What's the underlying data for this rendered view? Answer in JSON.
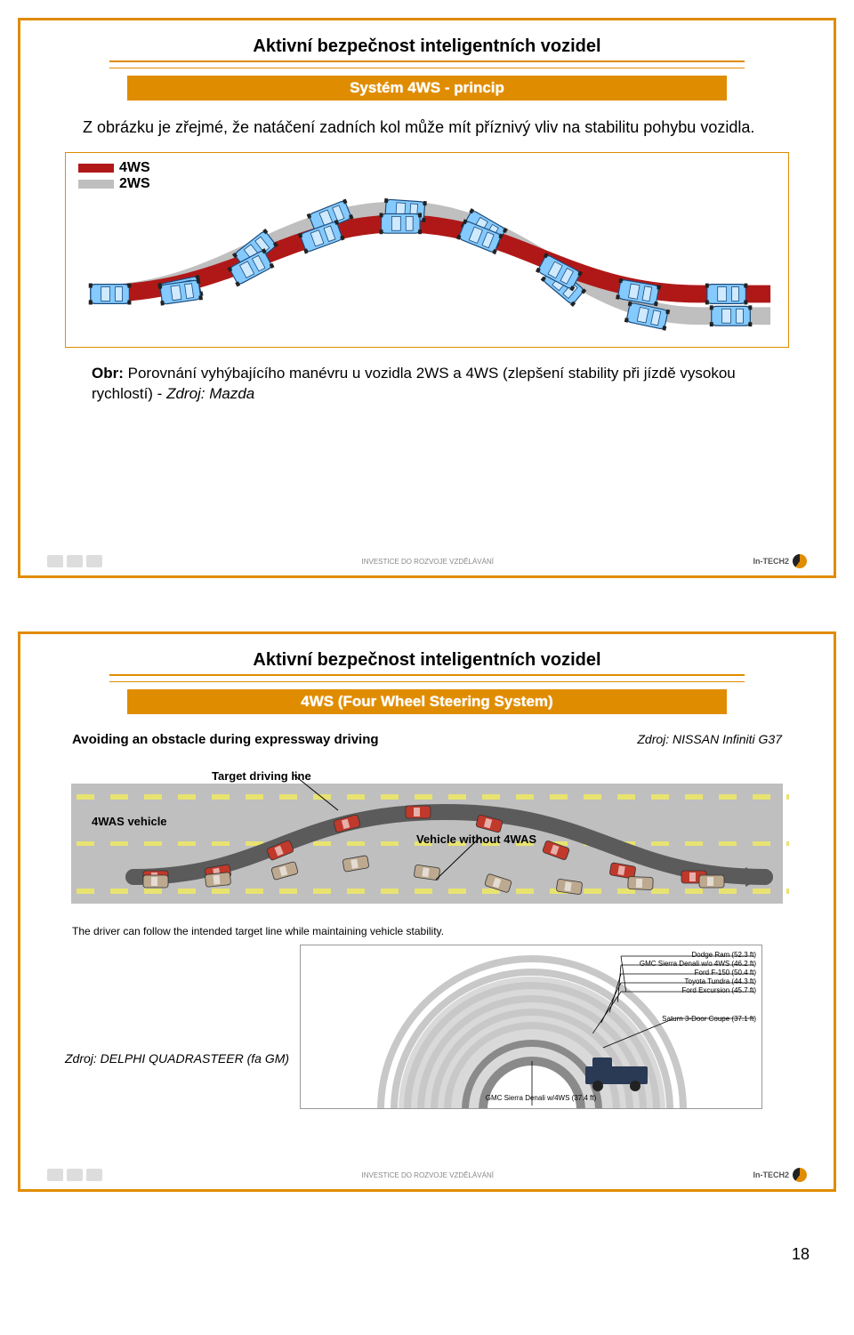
{
  "page_number": "18",
  "common": {
    "slide_header": "Aktivní bezpečnost inteligentních vozidel",
    "footer_center": "INVESTICE DO ROZVOJE VZDĚLÁVÁNÍ",
    "footer_right_brand": "In-TECH2",
    "accent_color": "#e08c00",
    "frame_color": "#e08c00"
  },
  "slide1": {
    "section_title": "Systém 4WS - princip",
    "intro_text": "Z obrázku je zřejmé, že natáčení zadních kol může mít příznivý vliv na stabilitu pohybu vozidla.",
    "legend": {
      "a_label": "4WS",
      "a_color": "#b01818",
      "b_label": "2WS",
      "b_color": "#bfbfbf"
    },
    "caption_prefix": "Obr:",
    "caption_main": " Porovnání vyhýbajícího manévru u vozidla 2WS a 4WS (zlepšení stability při jízdě vysokou rychlostí) - ",
    "caption_source": "Zdroj: Mazda",
    "path_4ws": {
      "color": "#b01818",
      "width": 20
    },
    "path_2ws": {
      "color": "#bfbfbf",
      "width": 20
    },
    "car_body_color": "#84caff",
    "car_outline_color": "#1a4a7a"
  },
  "slide2": {
    "section_title": "4WS (Four Wheel Steering System)",
    "figA": {
      "heading": "Avoiding an obstacle during expressway driving",
      "source": "Zdroj: NISSAN Infiniti G37",
      "label_target": "Target driving line",
      "label_4was": "4WAS vehicle",
      "label_without": "Vehicle without 4WAS",
      "footnote": "The driver can follow the intended target line while maintaining vehicle stability.",
      "road_color": "#8f8f8f",
      "lane_color": "#e8e370",
      "arrow_color": "#5b5b5b",
      "car_4was_color": "#c0392b",
      "car_plain_color": "#bca98f"
    },
    "figB": {
      "caption": "Zdroj: DELPHI QUADRASTEER (fa GM)",
      "center_label": "GMC Sierra Denali w/4WS (37.4 ft)",
      "outer_label": "Saturn 3-Door Coupe (37.1 ft)",
      "stack": [
        "Dodge Ram (52.3 ft)",
        "GMC Sierra Denali w/o 4WS (46.2 ft)",
        "Ford F-150 (50.4 ft)",
        "Toyota Tundra (44.3 ft)",
        "Ford Excursion (45.7 ft)"
      ],
      "ring_fill": "#d9d9d9",
      "ring_stroke": "#8a8a8a",
      "truck_color": "#2a3a55"
    }
  }
}
